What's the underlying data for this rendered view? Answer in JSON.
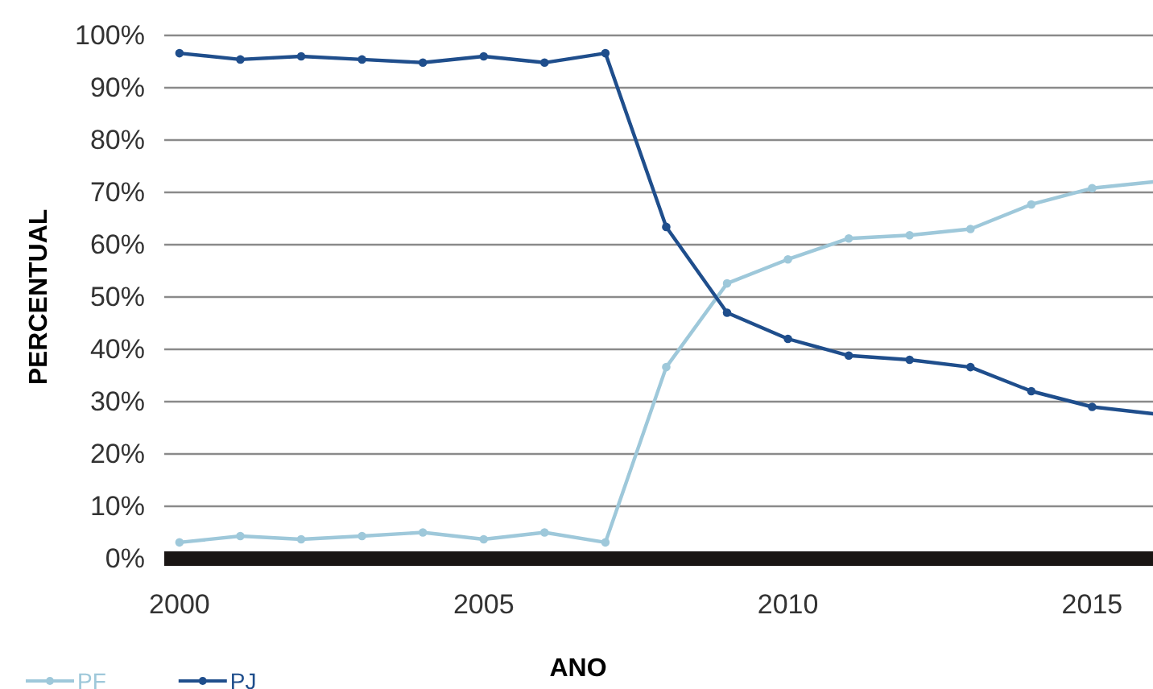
{
  "chart_data": {
    "type": "line",
    "xlabel": "ANO",
    "ylabel": "PERCENTUAL",
    "x": [
      2000,
      2001,
      2002,
      2003,
      2004,
      2005,
      2006,
      2007,
      2008,
      2009,
      2010,
      2011,
      2012,
      2013,
      2014,
      2015,
      2016
    ],
    "series": [
      {
        "name": "PF",
        "color": "#9ec8da",
        "values": [
          3.1,
          4.3,
          3.7,
          4.3,
          5,
          3.7,
          5,
          3.1,
          36.6,
          52.6,
          57.2,
          61.2,
          61.8,
          63,
          67.7,
          70.8,
          72
        ]
      },
      {
        "name": "PJ",
        "color": "#1f4e8c",
        "values": [
          96.6,
          95.4,
          96,
          95.4,
          94.8,
          96,
          94.8,
          96.6,
          63.4,
          47,
          42,
          38.8,
          38,
          36.6,
          32,
          29,
          27.7
        ]
      }
    ],
    "xlim": [
      1999.75,
      2016
    ],
    "xticks": [
      2000,
      2005,
      2010,
      2015
    ],
    "ylim": [
      0,
      100
    ],
    "yticks": [
      {
        "value": 0,
        "label": "0%"
      },
      {
        "value": 10,
        "label": "10%"
      },
      {
        "value": 20,
        "label": "20%"
      },
      {
        "value": 30,
        "label": "30%"
      },
      {
        "value": 40,
        "label": "40%"
      },
      {
        "value": 50,
        "label": "50%"
      },
      {
        "value": 60,
        "label": "60%"
      },
      {
        "value": 70,
        "label": "70%"
      },
      {
        "value": 80,
        "label": "80%"
      },
      {
        "value": 90,
        "label": "90%"
      },
      {
        "value": 100,
        "label": "100%"
      }
    ],
    "grid": "y",
    "legend": "bottom left",
    "marker": "circle",
    "line_style": "solid"
  }
}
